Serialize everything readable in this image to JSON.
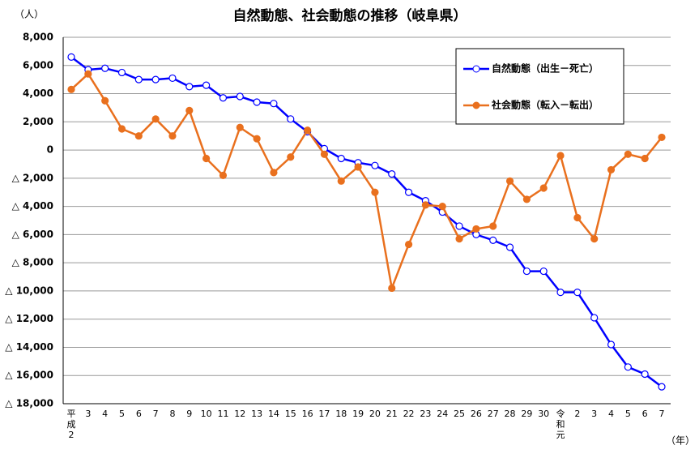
{
  "chart_data": {
    "type": "line",
    "title": "自然動態、社会動態の推移（岐阜県）",
    "y_unit": "（人）",
    "x_unit": "（年）",
    "categories": [
      "平成2",
      "3",
      "4",
      "5",
      "6",
      "7",
      "8",
      "9",
      "10",
      "11",
      "12",
      "13",
      "14",
      "15",
      "16",
      "17",
      "18",
      "19",
      "20",
      "21",
      "22",
      "23",
      "24",
      "25",
      "26",
      "27",
      "28",
      "29",
      "30",
      "令和元",
      "2",
      "3",
      "4",
      "5",
      "6",
      "7"
    ],
    "series": [
      {
        "name": "自然動態（出生－死亡）",
        "color": "#0000ff",
        "marker": "open",
        "values": [
          6600,
          5700,
          5800,
          5500,
          5000,
          5000,
          5100,
          4500,
          4600,
          3700,
          3800,
          3400,
          3300,
          2200,
          1300,
          100,
          -600,
          -900,
          -1100,
          -1700,
          -3000,
          -3600,
          -4400,
          -5400,
          -6000,
          -6400,
          -6900,
          -8600,
          -8600,
          -10100,
          -10100,
          -11900,
          -13800,
          -15400,
          -15900,
          -16800
        ]
      },
      {
        "name": "社会動態（転入－転出）",
        "color": "#e9701e",
        "marker": "filled",
        "values": [
          4300,
          5400,
          3500,
          1500,
          1000,
          2200,
          1000,
          2800,
          -600,
          -1800,
          1600,
          800,
          -1600,
          -500,
          1400,
          -300,
          -2200,
          -1200,
          -3000,
          -9800,
          -6700,
          -3900,
          -4000,
          -6300,
          -5600,
          -5400,
          -2200,
          -3500,
          -2700,
          -400,
          -4800,
          -6300,
          -1400,
          -300,
          -600,
          900
        ]
      }
    ],
    "ylim": [
      -18000,
      8000
    ],
    "yticks": [
      {
        "value": -18000,
        "label": "△ 18,000"
      },
      {
        "value": -16000,
        "label": "△ 16,000"
      },
      {
        "value": -14000,
        "label": "△ 14,000"
      },
      {
        "value": -12000,
        "label": "△ 12,000"
      },
      {
        "value": -10000,
        "label": "△ 10,000"
      },
      {
        "value": -8000,
        "label": "△ 8,000"
      },
      {
        "value": -6000,
        "label": "△ 6,000"
      },
      {
        "value": -4000,
        "label": "△ 4,000"
      },
      {
        "value": -2000,
        "label": "△ 2,000"
      },
      0,
      {
        "value": 2000,
        "label": "2,000"
      },
      {
        "value": 4000,
        "label": "4,000"
      },
      {
        "value": 6000,
        "label": "6,000"
      },
      {
        "value": 8000,
        "label": "8,000"
      }
    ],
    "grid": true
  }
}
